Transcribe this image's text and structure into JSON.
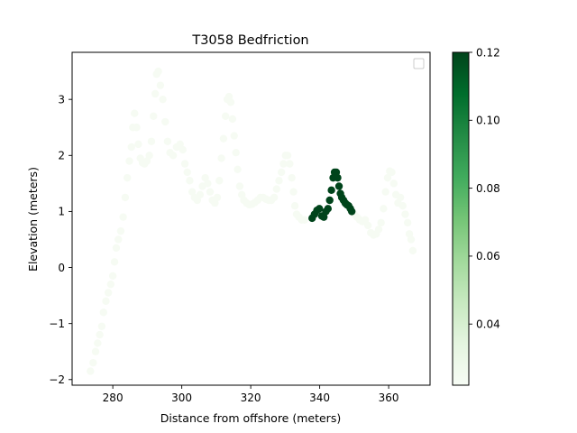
{
  "chart_data": {
    "type": "scatter",
    "title": "T3058 Bedfriction",
    "xlabel": "Distance from offshore (meters)",
    "ylabel": "Elevation (meters)",
    "xlim": [
      268.2,
      372.0
    ],
    "ylim": [
      -2.1,
      3.84
    ],
    "xticks": [
      280,
      300,
      320,
      340,
      360
    ],
    "yticks": [
      -2,
      -1,
      0,
      1,
      2,
      3
    ],
    "legend": {
      "position": "top-right",
      "entries": []
    },
    "colorbar": {
      "colormap": "Greens",
      "range": [
        0.022,
        0.12
      ],
      "ticks": [
        "0.04",
        "0.06",
        "0.08",
        "0.10",
        "0.12"
      ],
      "tick_values": [
        0.04,
        0.06,
        0.08,
        0.1,
        0.12
      ]
    },
    "series": [
      {
        "color_value": 0.023,
        "points": [
          [
            273.5,
            -1.85
          ],
          [
            274.3,
            -1.7
          ],
          [
            275.0,
            -1.5
          ],
          [
            275.6,
            -1.35
          ],
          [
            276.2,
            -1.2
          ],
          [
            276.8,
            -1.05
          ],
          [
            277.3,
            -0.8
          ],
          [
            278.0,
            -0.6
          ],
          [
            278.7,
            -0.45
          ],
          [
            279.4,
            -0.3
          ],
          [
            280.0,
            -0.15
          ],
          [
            280.5,
            0.1
          ],
          [
            281.0,
            0.35
          ],
          [
            281.6,
            0.5
          ],
          [
            282.3,
            0.65
          ],
          [
            283.0,
            0.9
          ],
          [
            283.6,
            1.25
          ],
          [
            284.2,
            1.6
          ],
          [
            284.8,
            1.9
          ],
          [
            285.4,
            2.15
          ],
          [
            285.8,
            2.5
          ],
          [
            286.3,
            2.75
          ],
          [
            286.9,
            2.5
          ],
          [
            287.4,
            2.2
          ],
          [
            288.0,
            1.95
          ],
          [
            288.6,
            1.87
          ],
          [
            289.2,
            1.85
          ],
          [
            289.9,
            1.9
          ],
          [
            290.6,
            2.0
          ],
          [
            291.2,
            2.25
          ],
          [
            291.8,
            2.7
          ],
          [
            292.3,
            3.1
          ],
          [
            292.7,
            3.45
          ],
          [
            293.2,
            3.5
          ],
          [
            293.8,
            3.25
          ],
          [
            294.5,
            3.0
          ],
          [
            295.2,
            2.6
          ],
          [
            295.9,
            2.25
          ],
          [
            296.6,
            2.05
          ],
          [
            297.5,
            2.0
          ],
          [
            298.5,
            2.15
          ],
          [
            299.5,
            2.2
          ],
          [
            300.3,
            2.1
          ],
          [
            300.9,
            1.85
          ],
          [
            301.6,
            1.7
          ],
          [
            302.3,
            1.55
          ],
          [
            303.0,
            1.35
          ],
          [
            303.7,
            1.25
          ],
          [
            304.5,
            1.2
          ],
          [
            305.3,
            1.3
          ],
          [
            306.0,
            1.45
          ],
          [
            306.8,
            1.6
          ],
          [
            307.5,
            1.5
          ],
          [
            308.2,
            1.35
          ],
          [
            308.9,
            1.2
          ],
          [
            309.6,
            1.15
          ],
          [
            310.3,
            1.25
          ],
          [
            310.9,
            1.55
          ],
          [
            311.5,
            1.95
          ],
          [
            312.1,
            2.3
          ],
          [
            312.7,
            2.7
          ],
          [
            313.2,
            3.0
          ],
          [
            313.7,
            3.05
          ],
          [
            314.2,
            2.95
          ],
          [
            314.7,
            2.65
          ],
          [
            315.2,
            2.35
          ],
          [
            315.7,
            2.05
          ],
          [
            316.2,
            1.75
          ],
          [
            316.8,
            1.45
          ],
          [
            317.4,
            1.3
          ],
          [
            318.0,
            1.2
          ],
          [
            318.8,
            1.15
          ],
          [
            319.6,
            1.12
          ],
          [
            320.4,
            1.13
          ],
          [
            321.2,
            1.16
          ],
          [
            322.0,
            1.2
          ],
          [
            322.8,
            1.25
          ],
          [
            323.6,
            1.25
          ],
          [
            324.4,
            1.22
          ],
          [
            325.2,
            1.2
          ],
          [
            326.0,
            1.2
          ],
          [
            326.8,
            1.25
          ],
          [
            327.5,
            1.4
          ],
          [
            328.2,
            1.55
          ],
          [
            328.9,
            1.7
          ],
          [
            329.5,
            1.85
          ],
          [
            330.1,
            2.0
          ],
          [
            330.7,
            2.0
          ],
          [
            331.3,
            1.85
          ],
          [
            331.9,
            1.6
          ],
          [
            332.4,
            1.35
          ],
          [
            332.8,
            1.1
          ],
          [
            333.3,
            0.95
          ],
          [
            334.0,
            0.9
          ],
          [
            334.8,
            0.85
          ],
          [
            335.6,
            0.85
          ],
          [
            350.0,
            0.95
          ],
          [
            350.8,
            0.9
          ],
          [
            351.6,
            0.85
          ],
          [
            352.4,
            0.82
          ],
          [
            353.2,
            0.85
          ],
          [
            354.0,
            0.75
          ],
          [
            354.8,
            0.62
          ],
          [
            355.6,
            0.58
          ],
          [
            356.4,
            0.6
          ],
          [
            357.1,
            0.68
          ],
          [
            357.8,
            0.8
          ],
          [
            358.5,
            1.05
          ],
          [
            359.1,
            1.35
          ],
          [
            359.7,
            1.6
          ],
          [
            360.3,
            1.72
          ],
          [
            360.9,
            1.7
          ],
          [
            361.5,
            1.5
          ],
          [
            362.1,
            1.3
          ],
          [
            362.7,
            1.15
          ],
          [
            363.4,
            1.25
          ],
          [
            364.1,
            1.1
          ],
          [
            364.8,
            0.95
          ],
          [
            365.5,
            0.8
          ],
          [
            366.0,
            0.6
          ],
          [
            366.5,
            0.5
          ],
          [
            367.0,
            0.3
          ]
        ]
      },
      {
        "color_value": 0.12,
        "points": [
          [
            337.8,
            0.88
          ],
          [
            338.5,
            0.95
          ],
          [
            339.2,
            1.02
          ],
          [
            339.9,
            1.05
          ],
          [
            340.6,
            0.92
          ],
          [
            341.2,
            0.9
          ],
          [
            341.8,
            1.0
          ],
          [
            342.4,
            1.05
          ],
          [
            342.9,
            1.2
          ],
          [
            343.4,
            1.38
          ],
          [
            343.9,
            1.6
          ],
          [
            344.3,
            1.7
          ],
          [
            344.8,
            1.7
          ],
          [
            345.2,
            1.6
          ],
          [
            345.6,
            1.45
          ],
          [
            346.0,
            1.32
          ],
          [
            346.4,
            1.25
          ],
          [
            346.9,
            1.2
          ],
          [
            347.4,
            1.15
          ],
          [
            347.9,
            1.12
          ],
          [
            348.4,
            1.1
          ],
          [
            348.9,
            1.05
          ],
          [
            349.3,
            1.0
          ]
        ]
      }
    ]
  }
}
